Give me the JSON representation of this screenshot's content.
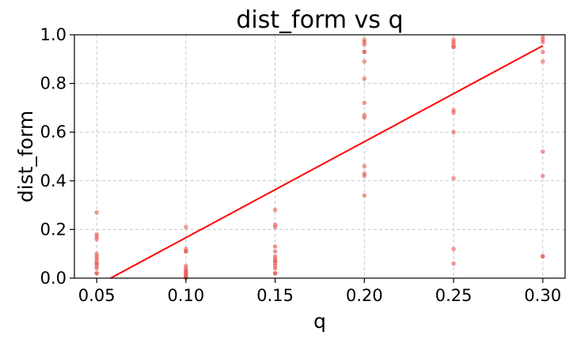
{
  "chart_data": {
    "type": "scatter",
    "title": "dist_form vs q",
    "xlabel": "q",
    "ylabel": "dist_form",
    "xlim": [
      0.0375,
      0.3125
    ],
    "ylim": [
      0.0,
      1.0
    ],
    "xticks": [
      0.05,
      0.1,
      0.15,
      0.2,
      0.25,
      0.3
    ],
    "xtick_labels": [
      "0.05",
      "0.10",
      "0.15",
      "0.20",
      "0.25",
      "0.30"
    ],
    "yticks": [
      0.0,
      0.2,
      0.4,
      0.6,
      0.8,
      1.0
    ],
    "ytick_labels": [
      "0.0",
      "0.2",
      "0.4",
      "0.6",
      "0.8",
      "1.0"
    ],
    "grid": true,
    "point_color": "#e8534a",
    "line_color": "#ff0000",
    "points": [
      {
        "q": 0.05,
        "values": [
          0.27,
          0.18,
          0.17,
          0.16,
          0.1,
          0.09,
          0.08,
          0.07,
          0.06,
          0.06,
          0.05,
          0.04,
          0.02,
          0.02
        ]
      },
      {
        "q": 0.1,
        "values": [
          0.21,
          0.12,
          0.11,
          0.11,
          0.05,
          0.04,
          0.03,
          0.03,
          0.02,
          0.02,
          0.01,
          0.01,
          0.005,
          0.0
        ]
      },
      {
        "q": 0.15,
        "values": [
          0.28,
          0.22,
          0.21,
          0.13,
          0.11,
          0.09,
          0.08,
          0.07,
          0.07,
          0.06,
          0.05,
          0.04,
          0.02,
          0.02
        ]
      },
      {
        "q": 0.2,
        "values": [
          0.98,
          0.97,
          0.96,
          0.93,
          0.93,
          0.89,
          0.82,
          0.72,
          0.67,
          0.66,
          0.46,
          0.43,
          0.42,
          0.34
        ]
      },
      {
        "q": 0.25,
        "values": [
          0.98,
          0.97,
          0.96,
          0.95,
          0.95,
          0.69,
          0.68,
          0.6,
          0.41,
          0.12,
          0.06
        ]
      },
      {
        "q": 0.3,
        "values": [
          0.99,
          0.98,
          0.97,
          0.93,
          0.89,
          0.52,
          0.42,
          0.09,
          0.09
        ]
      }
    ],
    "trendline": {
      "x": [
        0.0375,
        0.3
      ],
      "y": [
        -0.08,
        0.955
      ]
    }
  }
}
